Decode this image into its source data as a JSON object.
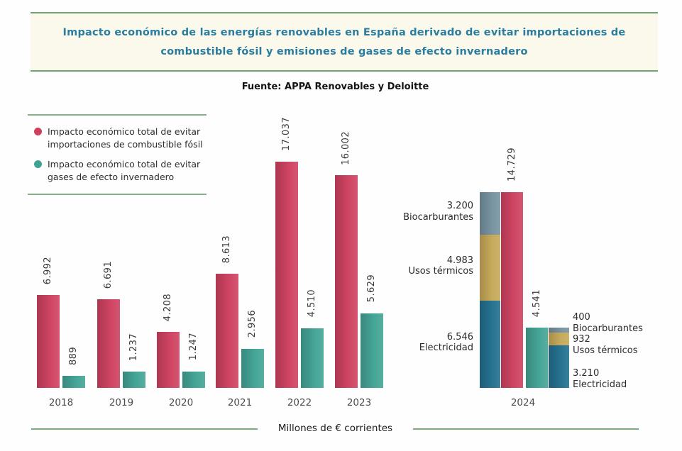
{
  "title": {
    "line1": "Impacto económico de las energías renovables en España derivado de evitar importaciones de",
    "line2": "combustible fósil y emisiones de gases de efecto invernadero"
  },
  "source": "Fuente: APPA Renovables y Deloitte",
  "legend": {
    "items": [
      {
        "color": "#ce3f5e",
        "line1": "Impacto económico total de evitar",
        "line2": "importaciones de combustible fósil"
      },
      {
        "color": "#3fa393",
        "line1": "Impacto económico total de evitar",
        "line2": "gases de efecto invernadero"
      }
    ]
  },
  "palette": {
    "fossil": "#ce3f5e",
    "ghg": "#3fa393",
    "electricidad": "#1f6e8d",
    "usos_termicos": "#c5a856",
    "biocarburantes": "#74909f",
    "accent_green": "#6fa572",
    "title_text": "#2a7da0",
    "title_bg": "#fbf9ec"
  },
  "chart_data": {
    "type": "bar",
    "title": "Impacto económico de las energías renovables en España derivado de evitar importaciones de combustible fósil y emisiones de gases de efecto invernadero",
    "source": "Fuente: APPA Renovables y Deloitte",
    "unit_label": "Millones de € corrientes",
    "categories": [
      "2018",
      "2019",
      "2020",
      "2021",
      "2022",
      "2023",
      "2024"
    ],
    "series": [
      {
        "name": "Impacto económico total de evitar importaciones de combustible fósil",
        "color": "#ce3f5e",
        "values": [
          6992,
          6691,
          4208,
          8613,
          17037,
          16002,
          14729
        ],
        "labels": [
          "6.992",
          "6.691",
          "4.208",
          "8.613",
          "17.037",
          "16.002",
          "14.729"
        ]
      },
      {
        "name": "Impacto económico total de evitar gases de efecto invernadero",
        "color": "#3fa393",
        "values": [
          889,
          1237,
          1247,
          2956,
          4510,
          5629,
          4541
        ],
        "labels": [
          "889",
          "1.237",
          "1.247",
          "2.956",
          "4.510",
          "5.629",
          "4.541"
        ]
      }
    ],
    "breakdown_2024": {
      "fossil": {
        "total": 14729,
        "total_label": "14.729",
        "segments": [
          {
            "name": "Electricidad",
            "value": 6546,
            "label": "6.546",
            "color": "#1f6e8d"
          },
          {
            "name": "Usos térmicos",
            "value": 4983,
            "label": "4.983",
            "color": "#c5a856"
          },
          {
            "name": "Biocarburantes",
            "value": 3200,
            "label": "3.200",
            "color": "#74909f"
          }
        ]
      },
      "ghg": {
        "total": 4541,
        "total_label": "4.541",
        "segments": [
          {
            "name": "Electricidad",
            "value": 3210,
            "label": "3.210",
            "color": "#1f6e8d"
          },
          {
            "name": "Usos térmicos",
            "value": 932,
            "label": "932",
            "color": "#c5a856"
          },
          {
            "name": "Biocarburantes",
            "value": 400,
            "label": "400",
            "color": "#74909f"
          }
        ]
      }
    },
    "ylim": [
      0,
      17500
    ],
    "grid": false,
    "legend_position": "top-left"
  }
}
